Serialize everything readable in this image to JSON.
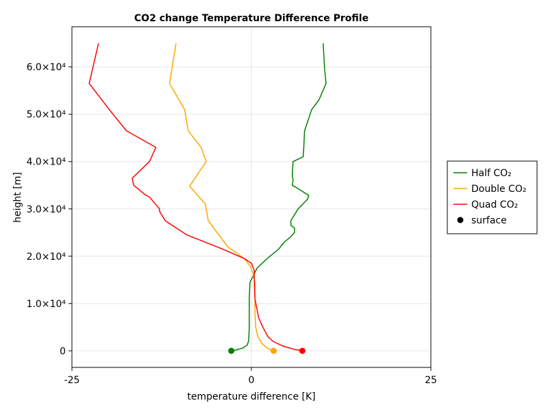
{
  "chart_data": {
    "type": "line",
    "title": "CO2 change Temperature Difference Profile",
    "xlabel": "temperature difference [K]",
    "ylabel": "height [m]",
    "xlim": [
      -25,
      25
    ],
    "ylim": [
      -3500,
      68500
    ],
    "x_ticks": [
      {
        "value": -25,
        "label": "-25"
      },
      {
        "value": 0,
        "label": "0"
      },
      {
        "value": 25,
        "label": "25"
      }
    ],
    "y_ticks": [
      {
        "value": 0,
        "label": "0"
      },
      {
        "value": 10000,
        "label": "1.0×10⁴"
      },
      {
        "value": 20000,
        "label": "2.0×10⁴"
      },
      {
        "value": 30000,
        "label": "3.0×10⁴"
      },
      {
        "value": 40000,
        "label": "4.0×10⁴"
      },
      {
        "value": 50000,
        "label": "5.0×10⁴"
      },
      {
        "value": 60000,
        "label": "6.0×10⁴"
      }
    ],
    "grid": true,
    "legend_position": "right",
    "series": [
      {
        "name": "Half CO₂",
        "color": "#008000",
        "points": [
          [
            -2.8,
            0
          ],
          [
            -2.1,
            200
          ],
          [
            -1.2,
            600
          ],
          [
            -0.6,
            1200
          ],
          [
            -0.4,
            2000
          ],
          [
            -0.35,
            3000
          ],
          [
            -0.3,
            5000
          ],
          [
            -0.3,
            8000
          ],
          [
            -0.3,
            11000
          ],
          [
            -0.2,
            14500
          ],
          [
            0.3,
            16000
          ],
          [
            0.8,
            17500
          ],
          [
            2.2,
            19500
          ],
          [
            3.8,
            21500
          ],
          [
            4.6,
            23000
          ],
          [
            5.4,
            24000
          ],
          [
            6.0,
            25000
          ],
          [
            6.0,
            26000
          ],
          [
            5.5,
            26500
          ],
          [
            5.5,
            27500
          ],
          [
            6.5,
            30000
          ],
          [
            7.8,
            32000
          ],
          [
            8.0,
            32800
          ],
          [
            6.8,
            34000
          ],
          [
            5.7,
            35000
          ],
          [
            5.8,
            36000
          ],
          [
            5.7,
            37000
          ],
          [
            5.8,
            40000
          ],
          [
            7.2,
            41000
          ],
          [
            7.3,
            43000
          ],
          [
            7.4,
            46500
          ],
          [
            8.4,
            51000
          ],
          [
            9.4,
            53000
          ],
          [
            10.4,
            56500
          ],
          [
            10.2,
            59500
          ],
          [
            10.0,
            65000
          ]
        ]
      },
      {
        "name": "Double CO₂",
        "color": "#ffa500",
        "points": [
          [
            3.1,
            0
          ],
          [
            2.3,
            500
          ],
          [
            1.5,
            1500
          ],
          [
            0.9,
            3000
          ],
          [
            0.6,
            5000
          ],
          [
            0.5,
            8000
          ],
          [
            0.5,
            11000
          ],
          [
            0.5,
            14500
          ],
          [
            0.2,
            16500
          ],
          [
            -0.2,
            18000
          ],
          [
            -1.0,
            19500
          ],
          [
            -3.3,
            22000
          ],
          [
            -6.0,
            27500
          ],
          [
            -6.3,
            30000
          ],
          [
            -6.4,
            31000
          ],
          [
            -8.6,
            34800
          ],
          [
            -6.3,
            40000
          ],
          [
            -7.0,
            43000
          ],
          [
            -8.8,
            46500
          ],
          [
            -9.3,
            51000
          ],
          [
            -11.4,
            56500
          ],
          [
            -10.5,
            65000
          ]
        ]
      },
      {
        "name": "Quad CO₂",
        "color": "#ff0000",
        "points": [
          [
            7.1,
            0
          ],
          [
            6.0,
            300
          ],
          [
            4.4,
            1000
          ],
          [
            3.0,
            2000
          ],
          [
            2.3,
            3000
          ],
          [
            1.6,
            5000
          ],
          [
            1.0,
            7000
          ],
          [
            0.5,
            11000
          ],
          [
            0.4,
            15000
          ],
          [
            0.4,
            17000
          ],
          [
            0.0,
            18500
          ],
          [
            -1.0,
            19500
          ],
          [
            -4.0,
            21500
          ],
          [
            -9.0,
            24500
          ],
          [
            -12.0,
            27500
          ],
          [
            -12.8,
            29500
          ],
          [
            -12.8,
            30000
          ],
          [
            -14.2,
            32500
          ],
          [
            -14.8,
            33000
          ],
          [
            -16.4,
            35000
          ],
          [
            -16.6,
            36500
          ],
          [
            -14.2,
            40000
          ],
          [
            -13.3,
            43000
          ],
          [
            -17.4,
            46500
          ],
          [
            -19.8,
            51000
          ],
          [
            -22.6,
            56500
          ],
          [
            -21.3,
            65000
          ]
        ]
      }
    ],
    "surface_points": [
      {
        "series": "Half CO₂",
        "x": -2.8,
        "y": 0,
        "color": "#008000"
      },
      {
        "series": "Double CO₂",
        "x": 3.1,
        "y": 0,
        "color": "#ffa500"
      },
      {
        "series": "Quad CO₂",
        "x": 7.1,
        "y": 0,
        "color": "#ff0000"
      }
    ],
    "legend": [
      {
        "label": "Half CO₂",
        "kind": "line",
        "color": "#008000"
      },
      {
        "label": "Double CO₂",
        "kind": "line",
        "color": "#ffa500"
      },
      {
        "label": "Quad CO₂",
        "kind": "line",
        "color": "#ff0000"
      },
      {
        "label": "surface",
        "kind": "marker",
        "color": "#000000"
      }
    ]
  }
}
